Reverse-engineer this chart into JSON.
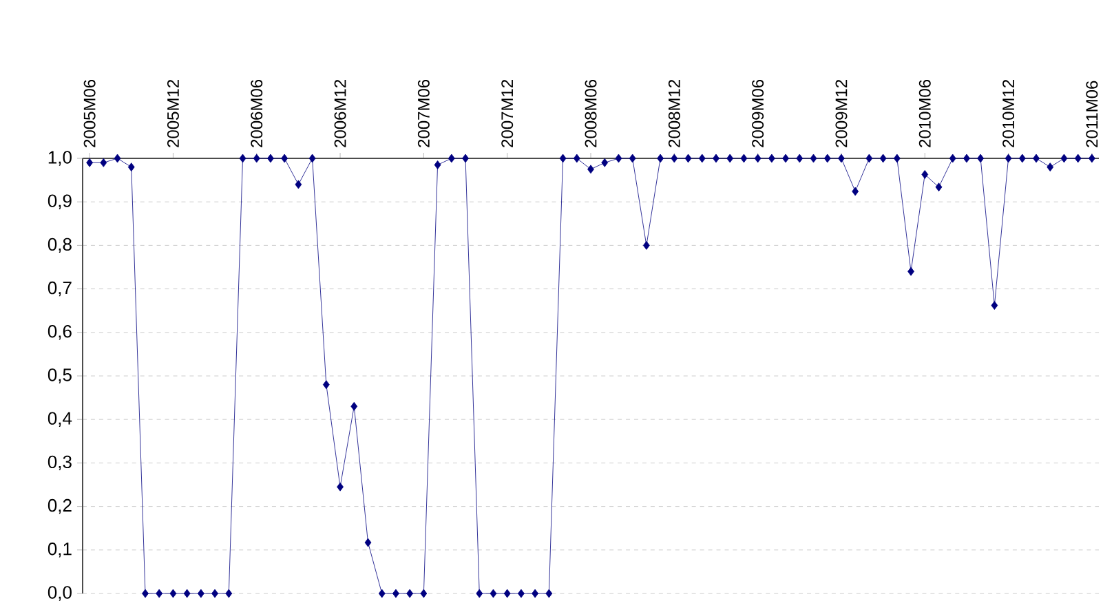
{
  "chart_data": {
    "type": "line",
    "categories": [
      "2005M06",
      null,
      null,
      null,
      null,
      null,
      "2005M12",
      null,
      null,
      null,
      null,
      null,
      "2006M06",
      null,
      null,
      null,
      null,
      null,
      "2006M12",
      null,
      null,
      null,
      null,
      null,
      "2007M06",
      null,
      null,
      null,
      null,
      null,
      "2007M12",
      null,
      null,
      null,
      null,
      null,
      "2008M06",
      null,
      null,
      null,
      null,
      null,
      "2008M12",
      null,
      null,
      null,
      null,
      null,
      "2009M06",
      null,
      null,
      null,
      null,
      null,
      "2009M12",
      null,
      null,
      null,
      null,
      null,
      "2010M06",
      null,
      null,
      null,
      null,
      null,
      "2010M12",
      null,
      null,
      null,
      null,
      null,
      "2011M06"
    ],
    "values": [
      0.99,
      0.99,
      1.0,
      0.98,
      0,
      0,
      0,
      0,
      0,
      0,
      0,
      1.0,
      1.0,
      1.0,
      1.0,
      0.94,
      1.0,
      0.48,
      0.245,
      0.43,
      0.117,
      0,
      0,
      0,
      0,
      0.985,
      1.0,
      1.0,
      0,
      0,
      0,
      0,
      0,
      0,
      1.0,
      1.0,
      0.975,
      0.99,
      1.0,
      1.0,
      0.8,
      1.0,
      1.0,
      1.0,
      1.0,
      1.0,
      1.0,
      1.0,
      1.0,
      1.0,
      1.0,
      1.0,
      1.0,
      1.0,
      1.0,
      0.924,
      1.0,
      1.0,
      1.0,
      0.74,
      0.963,
      0.934,
      1.0,
      1.0,
      1.0,
      0.662,
      1.0,
      1.0,
      1.0,
      0.98,
      1.0,
      1.0,
      1.0
    ],
    "color": "#000080",
    "ylim": [
      0,
      1
    ],
    "yticks": [
      {
        "value": 0,
        "label": "0,0"
      },
      {
        "value": 0.1,
        "label": "0,1"
      },
      {
        "value": 0.2,
        "label": "0,2"
      },
      {
        "value": 0.3,
        "label": "0,3"
      },
      {
        "value": 0.4,
        "label": "0,4"
      },
      {
        "value": 0.5,
        "label": "0,5"
      },
      {
        "value": 0.6,
        "label": "0,6"
      },
      {
        "value": 0.7,
        "label": "0,7"
      },
      {
        "value": 0.8,
        "label": "0,8"
      },
      {
        "value": 0.9,
        "label": "0,9"
      },
      {
        "value": 1.0,
        "label": "1,0"
      }
    ],
    "grid": "y",
    "marker": "diamond"
  }
}
